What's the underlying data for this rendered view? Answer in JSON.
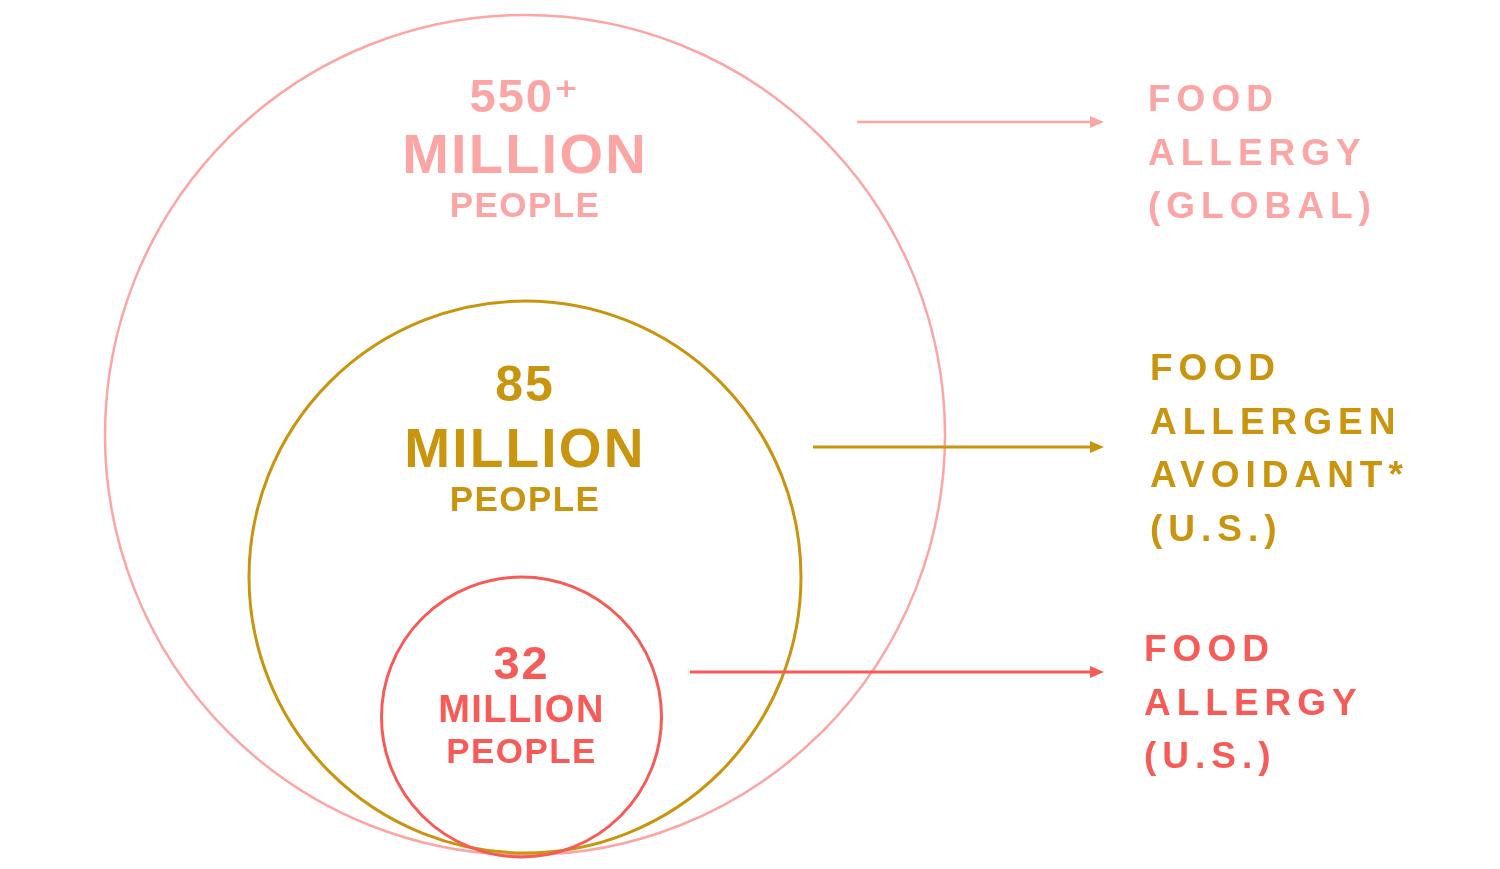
{
  "chart_data": {
    "type": "other",
    "categories": [
      "FOOD ALLERGY (GLOBAL)",
      "FOOD ALLERGEN AVOIDANT* (U.S.)",
      "FOOD ALLERGY (U.S.)"
    ],
    "values": [
      550,
      85,
      32
    ],
    "value_labels": [
      "550⁺ MILLION PEOPLE",
      "85 MILLION PEOPLE",
      "32 MILLION PEOPLE"
    ],
    "colors": [
      "#fca5a5",
      "#c9940e",
      "#f75b58"
    ]
  }
}
